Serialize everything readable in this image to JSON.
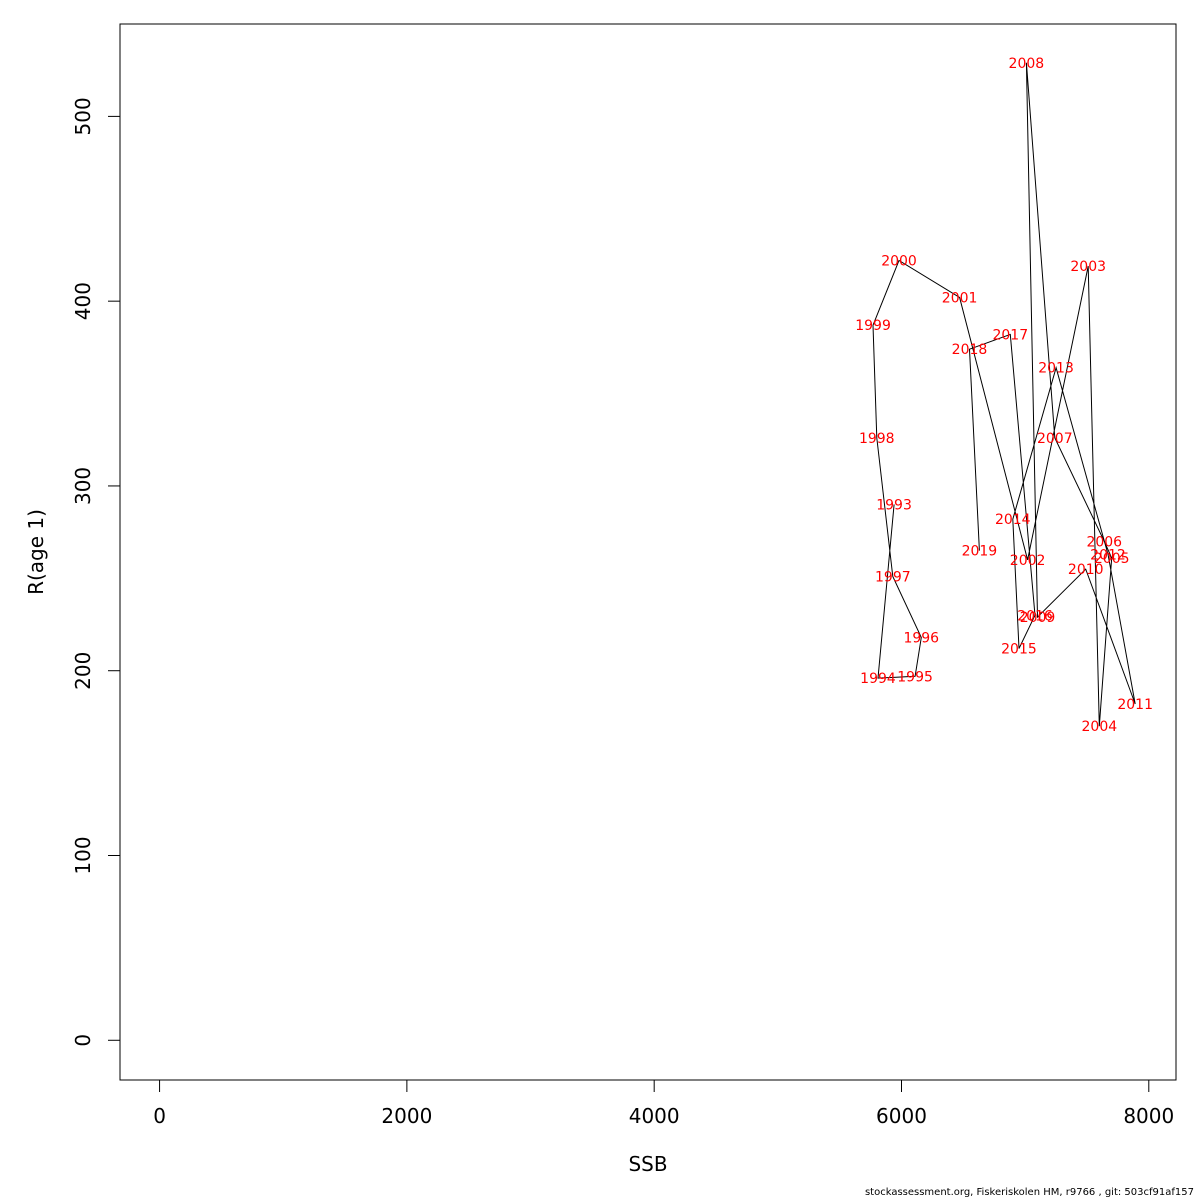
{
  "chart_data": {
    "type": "line",
    "xlabel": "SSB",
    "ylabel": "R(age 1)",
    "xlim": [
      -320,
      8220
    ],
    "ylim": [
      -21.5,
      550
    ],
    "x_ticks": [
      0,
      2000,
      4000,
      6000,
      8000
    ],
    "y_ticks": [
      0,
      100,
      200,
      300,
      400,
      500
    ],
    "grid": false,
    "line_color": "#000000",
    "label_color": "#ff0000",
    "points": [
      {
        "year": "1993",
        "x": 5940,
        "y": 290
      },
      {
        "year": "1994",
        "x": 5810,
        "y": 196
      },
      {
        "year": "1995",
        "x": 6110,
        "y": 197
      },
      {
        "year": "1996",
        "x": 6160,
        "y": 218
      },
      {
        "year": "1997",
        "x": 5930,
        "y": 251
      },
      {
        "year": "1998",
        "x": 5800,
        "y": 326
      },
      {
        "year": "1999",
        "x": 5770,
        "y": 387
      },
      {
        "year": "2000",
        "x": 5980,
        "y": 422
      },
      {
        "year": "2001",
        "x": 6470,
        "y": 402
      },
      {
        "year": "2002",
        "x": 7020,
        "y": 260
      },
      {
        "year": "2003",
        "x": 7510,
        "y": 419
      },
      {
        "year": "2004",
        "x": 7600,
        "y": 170
      },
      {
        "year": "2005",
        "x": 7700,
        "y": 261
      },
      {
        "year": "2006",
        "x": 7640,
        "y": 270
      },
      {
        "year": "2007",
        "x": 7240,
        "y": 326
      },
      {
        "year": "2008",
        "x": 7010,
        "y": 529
      },
      {
        "year": "2009",
        "x": 7100,
        "y": 229
      },
      {
        "year": "2010",
        "x": 7490,
        "y": 255
      },
      {
        "year": "2011",
        "x": 7890,
        "y": 182
      },
      {
        "year": "2012",
        "x": 7670,
        "y": 263
      },
      {
        "year": "2013",
        "x": 7250,
        "y": 364
      },
      {
        "year": "2014",
        "x": 6900,
        "y": 282
      },
      {
        "year": "2015",
        "x": 6950,
        "y": 212
      },
      {
        "year": "2016",
        "x": 7080,
        "y": 230
      },
      {
        "year": "2017",
        "x": 6880,
        "y": 382
      },
      {
        "year": "2018",
        "x": 6550,
        "y": 374
      },
      {
        "year": "2019",
        "x": 6630,
        "y": 265
      }
    ]
  },
  "footer": "stockassessment.org, Fiskeriskolen HM, r9766 , git: 503cf91af157"
}
